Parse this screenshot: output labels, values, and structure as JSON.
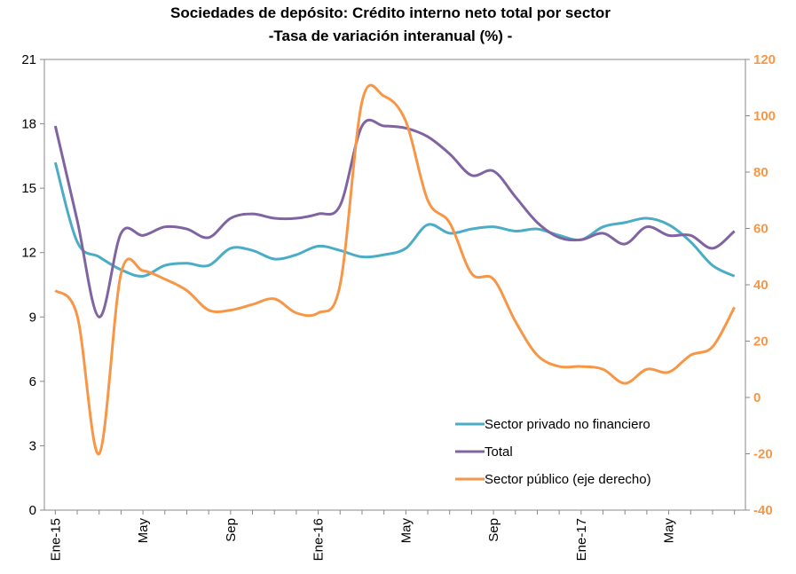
{
  "chart_data": {
    "type": "line",
    "title": "Sociedades de depósito:  Crédito interno neto total por sector",
    "subtitle": "-Tasa de variación interanual (%) -",
    "categories": [
      "Ene-15",
      null,
      null,
      null,
      "May",
      null,
      null,
      null,
      "Sep",
      null,
      null,
      null,
      "Ene-16",
      null,
      null,
      null,
      "May",
      null,
      null,
      null,
      "Sep",
      null,
      null,
      null,
      "Ene-17",
      null,
      null,
      null,
      "May",
      null,
      null,
      null
    ],
    "ylim": [
      0,
      21
    ],
    "yticks": [
      0,
      3,
      6,
      9,
      12,
      15,
      18,
      21
    ],
    "y2lim": [
      -40,
      120
    ],
    "y2ticks": [
      -40,
      -20,
      0,
      20,
      40,
      60,
      80,
      100,
      120
    ],
    "legend": "lower right",
    "series": [
      {
        "name": "Sector privado no financiero",
        "color": "#4bacc6",
        "values": [
          16.2,
          12.5,
          11.8,
          11.2,
          10.9,
          11.4,
          11.5,
          11.4,
          12.2,
          12.1,
          11.7,
          11.9,
          12.3,
          12.1,
          11.8,
          11.9,
          12.2,
          13.3,
          12.9,
          13.1,
          13.2,
          13.0,
          13.1,
          12.8,
          12.6,
          13.2,
          13.4,
          13.6,
          13.3,
          12.5,
          11.4,
          10.9
        ]
      },
      {
        "name": "Total",
        "color": "#8064a2",
        "values": [
          17.9,
          13.5,
          9.0,
          12.9,
          12.8,
          13.2,
          13.1,
          12.7,
          13.6,
          13.8,
          13.6,
          13.6,
          13.8,
          14.2,
          17.9,
          17.9,
          17.8,
          17.4,
          16.6,
          15.6,
          15.8,
          14.6,
          13.4,
          12.7,
          12.6,
          12.9,
          12.4,
          13.2,
          12.8,
          12.8,
          12.2,
          13.0
        ]
      },
      {
        "name": "Sector público (eje derecho)",
        "color": "#f79646",
        "axis": "y2",
        "values": [
          38,
          29,
          -20,
          44,
          45,
          42,
          38,
          31,
          31,
          33,
          35,
          30,
          30,
          40,
          105,
          107,
          98,
          70,
          62,
          44,
          42,
          27,
          15,
          11,
          11,
          10,
          5,
          10,
          9,
          15,
          18,
          32
        ]
      }
    ]
  }
}
